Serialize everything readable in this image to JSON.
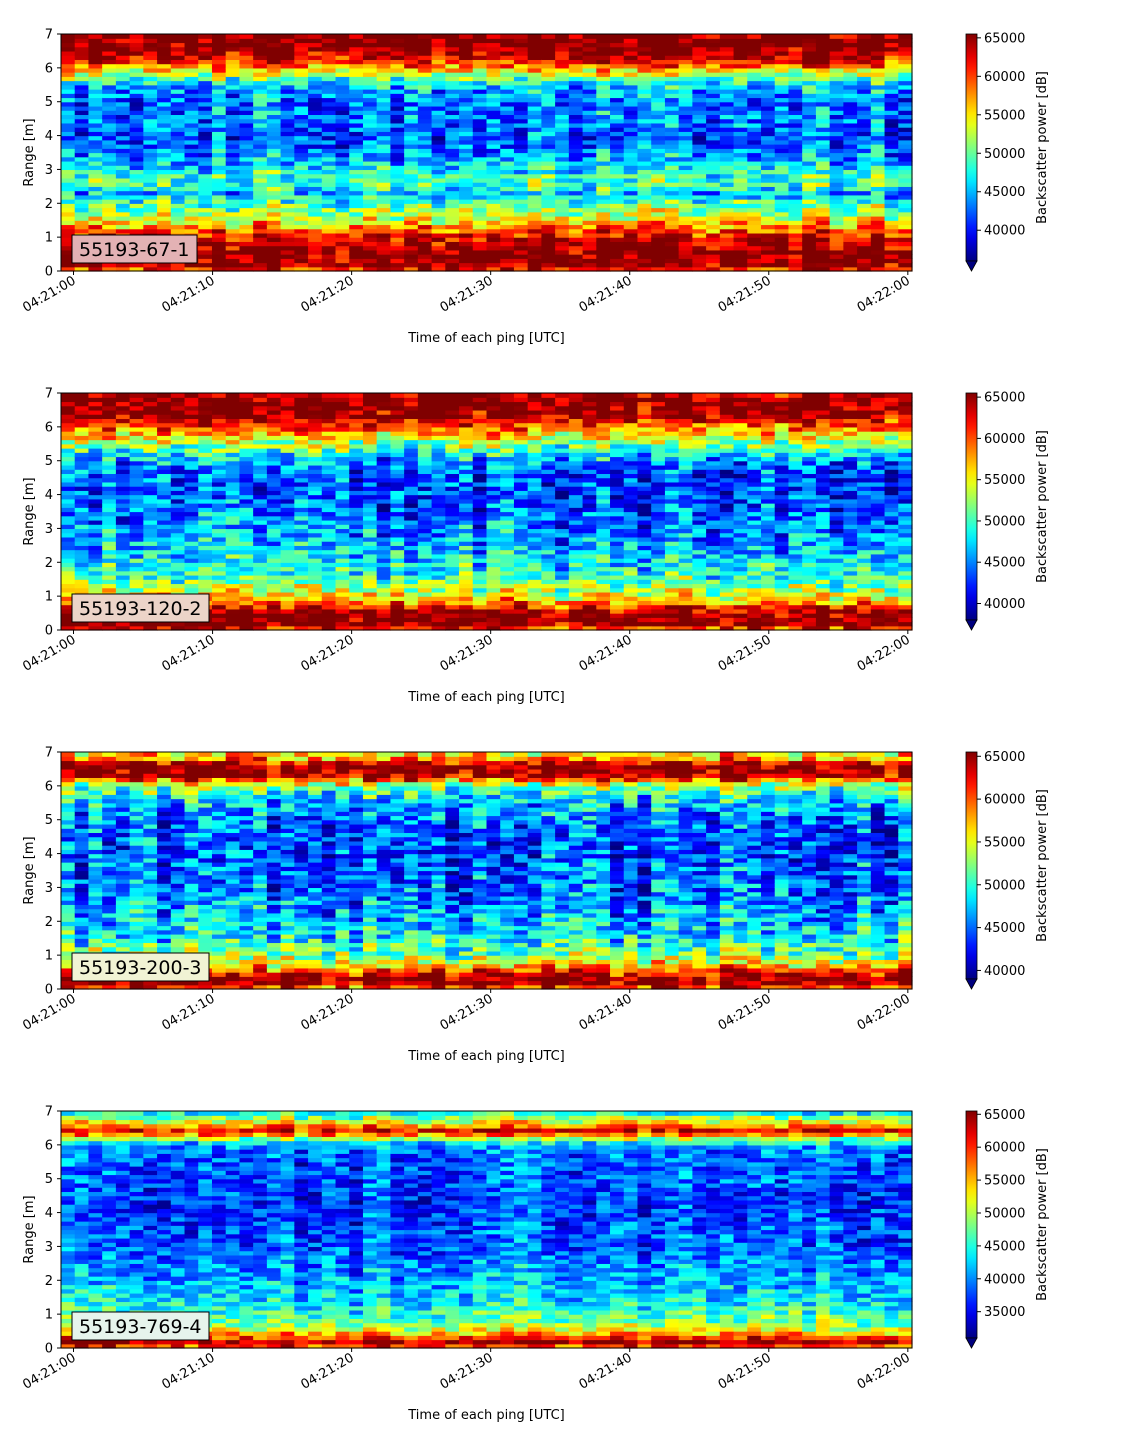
{
  "chart_data": [
    {
      "type": "heatmap",
      "label": "55193-67-1",
      "xlabel": "Time of each ping [UTC]",
      "ylabel": "Range [m]",
      "x_ticks": [
        "04:21:00",
        "04:21:10",
        "04:21:20",
        "04:21:30",
        "04:21:40",
        "04:21:50",
        "04:22:00"
      ],
      "xlim": [
        "04:21:00",
        "04:22:00"
      ],
      "y_ticks": [
        0,
        1,
        2,
        3,
        4,
        5,
        6,
        7
      ],
      "ylim": [
        0,
        7
      ],
      "colorbar": {
        "label": "Backscatter power [dB]",
        "ticks": [
          40000,
          45000,
          50000,
          55000,
          60000,
          65000
        ],
        "vmin": 36000,
        "vmax": 65500,
        "colormap": "jet",
        "extend": "min"
      },
      "label_box_color": "#e3b2b4",
      "profile": [
        {
          "range": 0.0,
          "value": 60000
        },
        {
          "range": 0.2,
          "value": 66000
        },
        {
          "range": 0.6,
          "value": 66000
        },
        {
          "range": 1.0,
          "value": 63000
        },
        {
          "range": 1.3,
          "value": 58000
        },
        {
          "range": 1.6,
          "value": 53000
        },
        {
          "range": 2.0,
          "value": 50000
        },
        {
          "range": 2.3,
          "value": 45000
        },
        {
          "range": 2.6,
          "value": 50000
        },
        {
          "range": 3.0,
          "value": 47000
        },
        {
          "range": 3.5,
          "value": 44000
        },
        {
          "range": 4.0,
          "value": 42000
        },
        {
          "range": 4.5,
          "value": 44000
        },
        {
          "range": 5.0,
          "value": 43000
        },
        {
          "range": 5.5,
          "value": 46000
        },
        {
          "range": 6.0,
          "value": 57000
        },
        {
          "range": 6.3,
          "value": 64000
        },
        {
          "range": 6.6,
          "value": 66000
        },
        {
          "range": 7.0,
          "value": 66000
        }
      ]
    },
    {
      "type": "heatmap",
      "label": "55193-120-2",
      "xlabel": "Time of each ping [UTC]",
      "ylabel": "Range [m]",
      "x_ticks": [
        "04:21:00",
        "04:21:10",
        "04:21:20",
        "04:21:30",
        "04:21:40",
        "04:21:50",
        "04:22:00"
      ],
      "xlim": [
        "04:21:00",
        "04:22:00"
      ],
      "y_ticks": [
        0,
        1,
        2,
        3,
        4,
        5,
        6,
        7
      ],
      "ylim": [
        0,
        7
      ],
      "colorbar": {
        "label": "Backscatter power [dB]",
        "ticks": [
          40000,
          45000,
          50000,
          55000,
          60000,
          65000
        ],
        "vmin": 38000,
        "vmax": 65500,
        "colormap": "jet",
        "extend": "min"
      },
      "label_box_color": "#ecd4c8",
      "profile": [
        {
          "range": 0.0,
          "value": 60000
        },
        {
          "range": 0.2,
          "value": 66000
        },
        {
          "range": 0.45,
          "value": 66000
        },
        {
          "range": 0.7,
          "value": 61000
        },
        {
          "range": 1.0,
          "value": 55000
        },
        {
          "range": 1.5,
          "value": 50000
        },
        {
          "range": 2.0,
          "value": 48000
        },
        {
          "range": 2.5,
          "value": 46000
        },
        {
          "range": 3.0,
          "value": 45000
        },
        {
          "range": 3.5,
          "value": 44000
        },
        {
          "range": 4.0,
          "value": 43000
        },
        {
          "range": 4.5,
          "value": 43000
        },
        {
          "range": 5.0,
          "value": 45000
        },
        {
          "range": 5.5,
          "value": 52000
        },
        {
          "range": 6.0,
          "value": 59000
        },
        {
          "range": 6.3,
          "value": 65000
        },
        {
          "range": 6.7,
          "value": 66000
        },
        {
          "range": 7.0,
          "value": 64000
        }
      ]
    },
    {
      "type": "heatmap",
      "label": "55193-200-3",
      "xlabel": "Time of each ping [UTC]",
      "ylabel": "Range [m]",
      "x_ticks": [
        "04:21:00",
        "04:21:10",
        "04:21:20",
        "04:21:30",
        "04:21:40",
        "04:21:50",
        "04:22:00"
      ],
      "xlim": [
        "04:21:00",
        "04:22:00"
      ],
      "y_ticks": [
        0,
        1,
        2,
        3,
        4,
        5,
        6,
        7
      ],
      "ylim": [
        0,
        7
      ],
      "colorbar": {
        "label": "Backscatter power [dB]",
        "ticks": [
          40000,
          45000,
          50000,
          55000,
          60000,
          65000
        ],
        "vmin": 39000,
        "vmax": 65500,
        "colormap": "jet",
        "extend": "min"
      },
      "label_box_color": "#f1f3d4",
      "profile": [
        {
          "range": 0.0,
          "value": 58000
        },
        {
          "range": 0.2,
          "value": 66000
        },
        {
          "range": 0.4,
          "value": 64000
        },
        {
          "range": 0.7,
          "value": 57000
        },
        {
          "range": 1.0,
          "value": 52000
        },
        {
          "range": 1.5,
          "value": 49000
        },
        {
          "range": 2.0,
          "value": 47000
        },
        {
          "range": 2.5,
          "value": 46000
        },
        {
          "range": 3.0,
          "value": 45000
        },
        {
          "range": 3.5,
          "value": 45000
        },
        {
          "range": 4.0,
          "value": 44000
        },
        {
          "range": 4.5,
          "value": 44000
        },
        {
          "range": 5.0,
          "value": 45000
        },
        {
          "range": 5.5,
          "value": 47000
        },
        {
          "range": 6.0,
          "value": 52000
        },
        {
          "range": 6.3,
          "value": 64000
        },
        {
          "range": 6.6,
          "value": 66000
        },
        {
          "range": 6.8,
          "value": 58000
        },
        {
          "range": 7.0,
          "value": 55000
        }
      ]
    },
    {
      "type": "heatmap",
      "label": "55193-769-4",
      "xlabel": "Time of each ping [UTC]",
      "ylabel": "Range [m]",
      "x_ticks": [
        "04:21:00",
        "04:21:10",
        "04:21:20",
        "04:21:30",
        "04:21:40",
        "04:21:50",
        "04:22:00"
      ],
      "xlim": [
        "04:21:00",
        "04:22:00"
      ],
      "y_ticks": [
        0,
        1,
        2,
        3,
        4,
        5,
        6,
        7
      ],
      "ylim": [
        0,
        7
      ],
      "colorbar": {
        "label": "Backscatter power [dB]",
        "ticks": [
          35000,
          40000,
          45000,
          50000,
          55000,
          60000,
          65000
        ],
        "vmin": 31000,
        "vmax": 65500,
        "colormap": "jet",
        "extend": "min"
      },
      "label_box_color": "#e6f4ec",
      "profile": [
        {
          "range": 0.0,
          "value": 55000
        },
        {
          "range": 0.15,
          "value": 66000
        },
        {
          "range": 0.3,
          "value": 60000
        },
        {
          "range": 0.6,
          "value": 50000
        },
        {
          "range": 1.0,
          "value": 46000
        },
        {
          "range": 1.5,
          "value": 43000
        },
        {
          "range": 2.0,
          "value": 41000
        },
        {
          "range": 2.5,
          "value": 40000
        },
        {
          "range": 3.0,
          "value": 38000
        },
        {
          "range": 3.5,
          "value": 38000
        },
        {
          "range": 4.0,
          "value": 37000
        },
        {
          "range": 4.5,
          "value": 37000
        },
        {
          "range": 5.0,
          "value": 38000
        },
        {
          "range": 5.5,
          "value": 38000
        },
        {
          "range": 6.0,
          "value": 40000
        },
        {
          "range": 6.25,
          "value": 52000
        },
        {
          "range": 6.4,
          "value": 63000
        },
        {
          "range": 6.6,
          "value": 55000
        },
        {
          "range": 7.0,
          "value": 42000
        }
      ]
    }
  ]
}
